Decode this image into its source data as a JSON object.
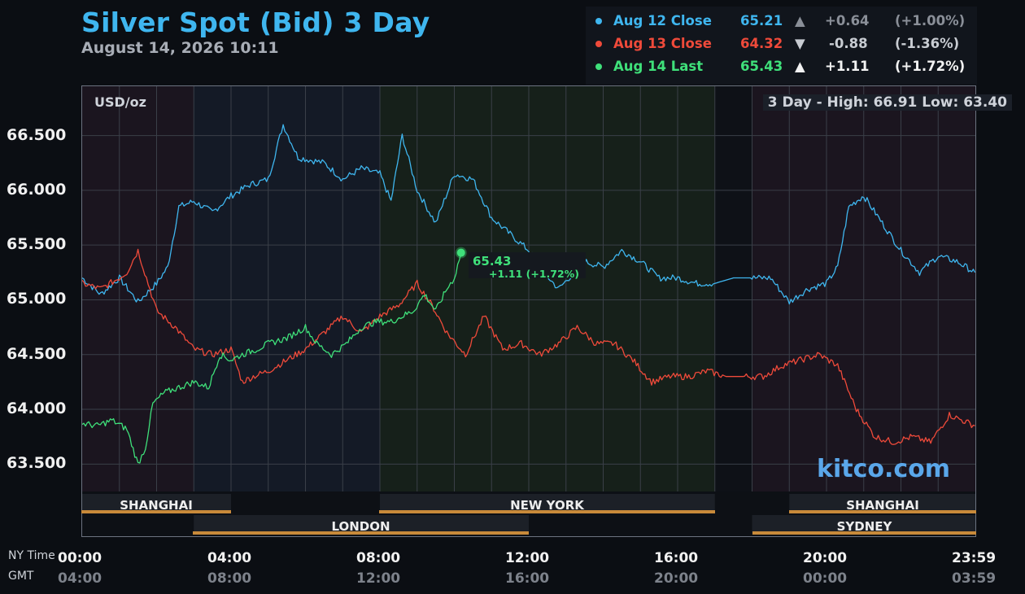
{
  "header": {
    "title": "Silver Spot (Bid) 3 Day",
    "timestamp": "August 14, 2026 10:11"
  },
  "legend": [
    {
      "label": "Aug 12 Close",
      "value": "65.21",
      "arrow": "▲",
      "change": "+0.64",
      "pct": "(+1.00%)",
      "color": "#3fb6ef",
      "change_color": "#8a8f98"
    },
    {
      "label": "Aug 13 Close",
      "value": "64.32",
      "arrow": "▼",
      "change": "-0.88",
      "pct": "(-1.36%)",
      "color": "#ef4a3a",
      "change_color": "#c8ccd2"
    },
    {
      "label": "Aug 14 Last",
      "value": "65.43",
      "arrow": "▲",
      "change": "+1.11",
      "pct": "(+1.72%)",
      "color": "#3fe07a",
      "change_color": "#f2f2f2"
    }
  ],
  "chart_header": {
    "unit": "USD/oz",
    "high_low": "3 Day - High: 66.91  Low: 63.40"
  },
  "last_marker": {
    "value": "65.43",
    "change": "+1.11 (+1.72%)"
  },
  "sessions": {
    "row1": [
      "SHANGHAI",
      "NEW YORK",
      "SHANGHAI"
    ],
    "row2": [
      "LONDON",
      "SYDNEY"
    ]
  },
  "axis": {
    "ny_label": "NY Time",
    "gmt_label": "GMT",
    "ny_ticks": [
      "00:00",
      "04:00",
      "08:00",
      "12:00",
      "16:00",
      "20:00",
      "23:59"
    ],
    "gmt_ticks": [
      "04:00",
      "08:00",
      "12:00",
      "16:00",
      "20:00",
      "00:00",
      "03:59"
    ]
  },
  "brand": "kitco.com",
  "chart_data": {
    "type": "line",
    "title": "Silver Spot (Bid) 3 Day",
    "ylabel": "USD/oz",
    "xlabel": "NY Time",
    "ylim": [
      63.25,
      66.95
    ],
    "yticks": [
      63.5,
      64.0,
      64.5,
      65.0,
      65.5,
      66.0,
      66.5
    ],
    "ytick_labels": [
      "63.500",
      "64.000",
      "64.500",
      "65.000",
      "65.500",
      "66.000",
      "66.500"
    ],
    "x_unit": "hours (NY time)",
    "xlim": [
      0,
      24
    ],
    "grid": true,
    "legend_position": "top-right",
    "series": [
      {
        "name": "Aug 12 Close",
        "color": "#3fb6ef",
        "x": [
          0,
          0.5,
          1,
          1.5,
          2,
          2.3,
          2.6,
          3,
          3.5,
          4,
          4.5,
          5,
          5.4,
          5.8,
          6.5,
          7,
          7.5,
          8,
          8.3,
          8.6,
          9,
          9.5,
          10,
          10.5,
          11,
          11.5,
          12,
          12.4,
          12.8,
          13.5,
          14,
          14.5,
          15,
          15.5,
          16,
          16.5,
          17,
          17.5,
          18,
          18.5,
          19,
          19.5,
          20,
          20.3,
          20.6,
          21,
          21.5,
          22,
          22.5,
          23,
          23.5,
          23.99
        ],
        "values": [
          65.2,
          65.05,
          65.2,
          64.98,
          65.15,
          65.3,
          65.85,
          65.9,
          65.8,
          65.95,
          66.05,
          66.1,
          66.6,
          66.3,
          66.25,
          66.1,
          66.2,
          66.15,
          65.9,
          66.5,
          66.0,
          65.7,
          66.15,
          66.1,
          65.75,
          65.6,
          65.45,
          65.25,
          65.1,
          65.35,
          65.3,
          65.45,
          65.35,
          65.2,
          65.2,
          65.15,
          65.15,
          65.2,
          65.2,
          65.2,
          64.98,
          65.1,
          65.15,
          65.3,
          65.85,
          65.95,
          65.7,
          65.45,
          65.25,
          65.4,
          65.35,
          65.25
        ]
      },
      {
        "name": "Aug 13 Close",
        "color": "#ef4a3a",
        "x": [
          0,
          0.5,
          1,
          1.2,
          1.5,
          2,
          2.5,
          3,
          3.5,
          4,
          4.3,
          4.6,
          5,
          5.5,
          6,
          6.5,
          7,
          7.5,
          8,
          8.5,
          9,
          9.4,
          9.8,
          10.3,
          10.8,
          11.3,
          11.8,
          12.3,
          12.8,
          13.3,
          13.8,
          14.3,
          14.8,
          15.3,
          15.8,
          16.3,
          16.8,
          17.3,
          17.8,
          18.3,
          18.8,
          19.3,
          19.8,
          20.3,
          20.8,
          21.3,
          21.8,
          22.3,
          22.8,
          23.3,
          23.99
        ],
        "values": [
          65.15,
          65.1,
          65.2,
          65.25,
          65.45,
          64.9,
          64.75,
          64.55,
          64.5,
          64.55,
          64.25,
          64.3,
          64.35,
          64.45,
          64.55,
          64.7,
          64.85,
          64.7,
          64.85,
          64.95,
          65.15,
          64.95,
          64.7,
          64.5,
          64.85,
          64.55,
          64.6,
          64.5,
          64.6,
          64.75,
          64.6,
          64.6,
          64.45,
          64.25,
          64.3,
          64.3,
          64.35,
          64.3,
          64.3,
          64.3,
          64.4,
          64.45,
          64.5,
          64.4,
          64.0,
          63.75,
          63.7,
          63.75,
          63.7,
          63.95,
          63.85
        ]
      },
      {
        "name": "Aug 14 Last",
        "color": "#3fe07a",
        "x": [
          0,
          0.4,
          0.8,
          1.2,
          1.5,
          1.7,
          1.9,
          2.2,
          2.6,
          3.0,
          3.4,
          3.7,
          4.0,
          4.3,
          4.7,
          5.0,
          5.5,
          6.0,
          6.3,
          6.7,
          7.1,
          7.5,
          7.9,
          8.3,
          8.6,
          8.9,
          9.2,
          9.5,
          9.8,
          10.0,
          10.18
        ],
        "values": [
          63.87,
          63.85,
          63.9,
          63.82,
          63.5,
          63.65,
          64.05,
          64.15,
          64.2,
          64.25,
          64.2,
          64.5,
          64.45,
          64.5,
          64.55,
          64.6,
          64.65,
          64.75,
          64.6,
          64.5,
          64.6,
          64.75,
          64.8,
          64.8,
          64.85,
          64.9,
          65.05,
          64.9,
          65.1,
          65.2,
          65.43
        ]
      }
    ]
  }
}
